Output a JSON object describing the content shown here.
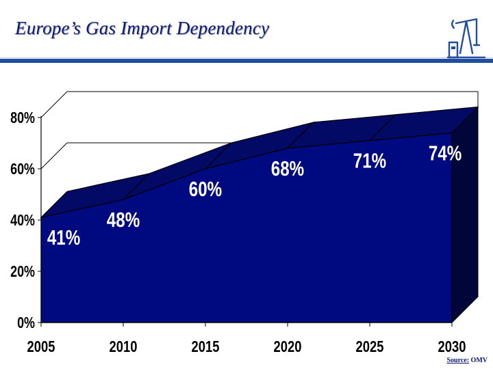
{
  "header": {
    "title": "Europe’s Gas Import Dependency",
    "logo_icon": "oil-pump-icon"
  },
  "footer": {
    "source_label": "Source:",
    "source_value": "OMV"
  },
  "colors": {
    "title": "#0b1a7a",
    "rule": "#1f4ea0",
    "area_front": "#000a80",
    "area_top": "#020a66",
    "area_side": "#00053a",
    "floor": "#8c8c8c"
  },
  "chart_data": {
    "type": "area",
    "title": "",
    "xlabel": "",
    "ylabel": "",
    "three_d": true,
    "grid": true,
    "x": [
      2005,
      2010,
      2015,
      2020,
      2025,
      2030
    ],
    "x_tick_labels": [
      "2005",
      "2010",
      "2015",
      "2020",
      "2025",
      "2030"
    ],
    "y_tick_labels": [
      "0%",
      "20%",
      "40%",
      "60%",
      "80%"
    ],
    "ylim": [
      0,
      80
    ],
    "series": [
      {
        "points": [
          {
            "x": 2005,
            "y": 41
          },
          {
            "x": 2010,
            "y": 48
          },
          {
            "x": 2015,
            "y": 60
          },
          {
            "x": 2020,
            "y": 68
          },
          {
            "x": 2025,
            "y": 71
          },
          {
            "x": 2030,
            "y": 74
          }
        ],
        "labels": [
          "41%",
          "48%",
          "60%",
          "68%",
          "71%",
          "74%"
        ]
      }
    ]
  }
}
